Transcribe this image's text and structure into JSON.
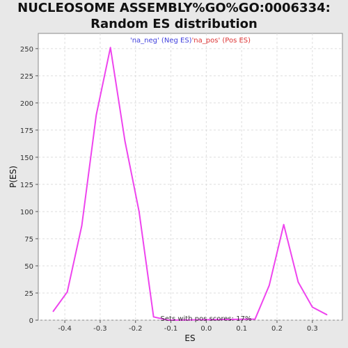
{
  "chart_data": {
    "type": "line",
    "title": "NUCLEOSOME ASSEMBLY%GO%GO:0006334: Random ES distribution",
    "xlabel": "ES",
    "ylabel": "P(ES)",
    "xlim": [
      -0.475,
      0.385
    ],
    "ylim": [
      0,
      264
    ],
    "grid": true,
    "x_ticks": [
      -0.4,
      -0.3,
      -0.2,
      -0.1,
      0.0,
      0.1,
      0.2,
      0.3
    ],
    "x_tick_labels": [
      "-0.4",
      "-0.3",
      "-0.2",
      "-0.1",
      "0.0",
      "0.1",
      "0.2",
      "0.3"
    ],
    "y_ticks": [
      0,
      25,
      50,
      75,
      100,
      125,
      150,
      175,
      200,
      225,
      250
    ],
    "y_tick_labels": [
      "0",
      "25",
      "50",
      "75",
      "100",
      "125",
      "150",
      "175",
      "200",
      "225",
      "250"
    ],
    "legend": [
      {
        "label": "'na_neg' (Neg ES)",
        "color": "#4040dd"
      },
      {
        "label": "'na_pos' (Pos ES)",
        "color": "#dd3333"
      }
    ],
    "annotation": "Sets with pos scores: 17%",
    "series": [
      {
        "color": "#ee44ee",
        "x": [
          -0.433,
          -0.393,
          -0.352,
          -0.311,
          -0.271,
          -0.23,
          -0.19,
          -0.149,
          -0.108,
          0.138,
          0.178,
          0.219,
          0.26,
          0.3,
          0.341
        ],
        "y": [
          8,
          26,
          87,
          189,
          251,
          165,
          100,
          3,
          0,
          1,
          32,
          88,
          35,
          12,
          5
        ]
      }
    ]
  }
}
